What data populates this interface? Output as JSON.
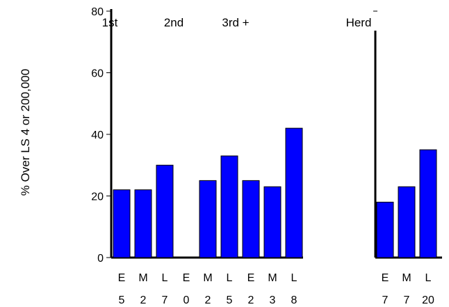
{
  "chart_data": {
    "type": "bar",
    "ylabel": "% Over LS 4 or 200,000",
    "ylim": [
      0,
      80
    ],
    "yticks": [
      0,
      20,
      40,
      60,
      80
    ],
    "grid": false,
    "groups": [
      {
        "label": "1st",
        "categories": [
          "E",
          "M",
          "L"
        ],
        "counts": [
          "5",
          "2",
          "7"
        ],
        "values": [
          22,
          22,
          30
        ]
      },
      {
        "label": "2nd",
        "categories": [
          "E",
          "M",
          "L"
        ],
        "counts": [
          "0",
          "2",
          "5"
        ],
        "values": [
          0,
          25,
          33
        ]
      },
      {
        "label": "3rd +",
        "categories": [
          "E",
          "M",
          "L"
        ],
        "counts": [
          "2",
          "3",
          "8"
        ],
        "values": [
          25,
          23,
          42
        ]
      },
      {
        "label": "Herd",
        "categories": [
          "E",
          "M",
          "L"
        ],
        "counts": [
          "7",
          "7",
          "20"
        ],
        "values": [
          18,
          23,
          35
        ]
      }
    ],
    "colors": {
      "bar": "#0000ff",
      "axis": "#000000"
    }
  }
}
